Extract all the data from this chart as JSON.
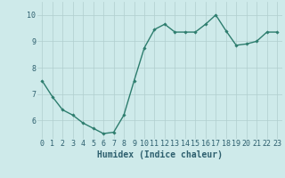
{
  "x": [
    0,
    1,
    2,
    3,
    4,
    5,
    6,
    7,
    8,
    9,
    10,
    11,
    12,
    13,
    14,
    15,
    16,
    17,
    18,
    19,
    20,
    21,
    22,
    23
  ],
  "y": [
    7.5,
    6.9,
    6.4,
    6.2,
    5.9,
    5.7,
    5.5,
    5.55,
    6.2,
    7.5,
    8.75,
    9.45,
    9.65,
    9.35,
    9.35,
    9.35,
    9.65,
    10.0,
    9.4,
    8.85,
    8.9,
    9.0,
    9.35,
    9.35
  ],
  "line_color": "#2d7d6e",
  "marker": "D",
  "marker_size": 1.8,
  "line_width": 1.0,
  "bg_color": "#ceeaea",
  "grid_color": "#b0cece",
  "xlabel": "Humidex (Indice chaleur)",
  "xlabel_color": "#2d5f6e",
  "tick_color": "#2d5f6e",
  "ylim": [
    5.3,
    10.5
  ],
  "xlim": [
    -0.5,
    23.5
  ],
  "yticks": [
    6,
    7,
    8,
    9,
    10
  ],
  "xticks": [
    0,
    1,
    2,
    3,
    4,
    5,
    6,
    7,
    8,
    9,
    10,
    11,
    12,
    13,
    14,
    15,
    16,
    17,
    18,
    19,
    20,
    21,
    22,
    23
  ],
  "xlabel_fontsize": 7.0,
  "tick_fontsize": 6.0,
  "fig_width": 3.2,
  "fig_height": 2.0,
  "dpi": 100
}
